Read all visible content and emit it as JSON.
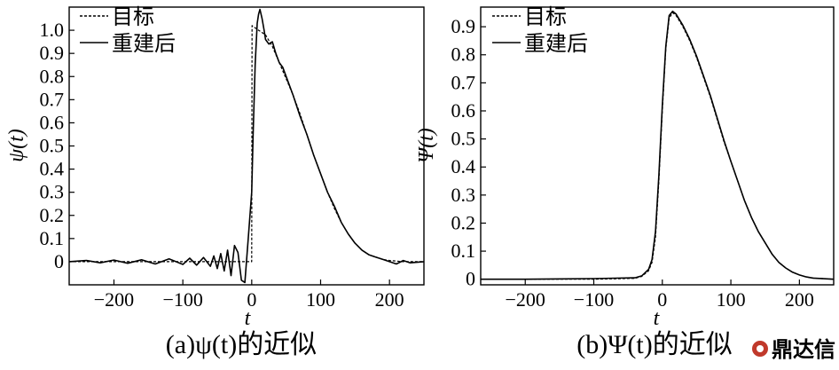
{
  "chart_data": [
    {
      "type": "line",
      "caption": "(a)ψ(t)的近似",
      "ylabel": "ψ(t)",
      "xlabel": "t",
      "xlim": [
        -265,
        250
      ],
      "ylim": [
        -0.1,
        1.1
      ],
      "xticks": [
        -200,
        -100,
        0,
        100,
        200
      ],
      "yticks": [
        0,
        0.1,
        0.2,
        0.3,
        0.4,
        0.5,
        0.6,
        0.7,
        0.8,
        0.9,
        1.0
      ],
      "ytick_labels": [
        "0",
        "0.1",
        "0.2",
        "0.3",
        "0.4",
        "0.5",
        "0.6",
        "0.7",
        "0.8",
        "0.9",
        "1.0"
      ],
      "legend": {
        "position": "top-left",
        "entries": [
          "目标",
          "重建后"
        ]
      },
      "series": [
        {
          "name": "目标",
          "style": "dashed",
          "x": [
            -265,
            -150,
            -50,
            -1,
            0,
            0.5,
            10,
            20,
            30,
            40,
            50,
            60,
            70,
            80,
            90,
            100,
            110,
            120,
            130,
            140,
            150,
            160,
            170,
            180,
            190,
            200,
            220,
            250
          ],
          "y": [
            0,
            0,
            0,
            0,
            0,
            1.02,
            1.0,
            0.98,
            0.93,
            0.86,
            0.79,
            0.72,
            0.64,
            0.55,
            0.46,
            0.38,
            0.3,
            0.23,
            0.17,
            0.12,
            0.08,
            0.05,
            0.03,
            0.02,
            0.01,
            0.005,
            0,
            0
          ]
        },
        {
          "name": "重建后",
          "style": "solid",
          "x": [
            -265,
            -240,
            -220,
            -200,
            -180,
            -160,
            -140,
            -120,
            -100,
            -90,
            -80,
            -70,
            -60,
            -55,
            -50,
            -45,
            -40,
            -35,
            -30,
            -25,
            -20,
            -15,
            -10,
            -5,
            0,
            2,
            5,
            8,
            10,
            12,
            15,
            18,
            20,
            25,
            30,
            35,
            40,
            45,
            50,
            60,
            70,
            80,
            90,
            100,
            110,
            120,
            130,
            140,
            150,
            160,
            170,
            180,
            190,
            200,
            210,
            220,
            230,
            250
          ],
          "y": [
            0,
            0.005,
            -0.005,
            0.007,
            -0.007,
            0.008,
            -0.01,
            0.012,
            -0.012,
            0.015,
            -0.015,
            0.018,
            -0.02,
            0.025,
            -0.03,
            0.035,
            -0.04,
            0.05,
            -0.06,
            0.07,
            0.04,
            -0.08,
            -0.09,
            0.1,
            0.3,
            0.55,
            0.85,
            1.03,
            1.07,
            1.09,
            1.05,
            1.0,
            0.96,
            0.94,
            0.95,
            0.9,
            0.86,
            0.84,
            0.8,
            0.72,
            0.63,
            0.55,
            0.46,
            0.38,
            0.3,
            0.24,
            0.17,
            0.12,
            0.08,
            0.05,
            0.03,
            0.02,
            0.01,
            0.0,
            -0.01,
            0.005,
            -0.005,
            0
          ]
        }
      ]
    },
    {
      "type": "line",
      "caption": "(b)Ψ(t)的近似",
      "ylabel": "Ψ(t)",
      "xlabel": "t",
      "xlim": [
        -265,
        250
      ],
      "ylim": [
        -0.02,
        0.97
      ],
      "xticks": [
        -200,
        -100,
        0,
        100,
        200
      ],
      "yticks": [
        0,
        0.1,
        0.2,
        0.3,
        0.4,
        0.5,
        0.6,
        0.7,
        0.8,
        0.9
      ],
      "ytick_labels": [
        "0",
        "0.1",
        "0.2",
        "0.3",
        "0.4",
        "0.5",
        "0.6",
        "0.7",
        "0.8",
        "0.9"
      ],
      "legend": {
        "position": "top-left",
        "entries": [
          "目标",
          "重建后"
        ]
      },
      "series": [
        {
          "name": "目标",
          "style": "dashed",
          "x": [
            -265,
            -200,
            -100,
            -40,
            -30,
            -20,
            -15,
            -10,
            -5,
            0,
            5,
            10,
            15,
            20,
            30,
            40,
            50,
            60,
            70,
            80,
            90,
            100,
            110,
            120,
            130,
            140,
            150,
            160,
            170,
            180,
            190,
            200,
            210,
            220,
            250
          ],
          "y": [
            0,
            0,
            0,
            0.003,
            0.01,
            0.03,
            0.06,
            0.15,
            0.35,
            0.6,
            0.82,
            0.93,
            0.95,
            0.94,
            0.9,
            0.85,
            0.79,
            0.72,
            0.65,
            0.57,
            0.49,
            0.42,
            0.35,
            0.28,
            0.22,
            0.17,
            0.13,
            0.09,
            0.06,
            0.04,
            0.025,
            0.015,
            0.008,
            0.004,
            0
          ]
        },
        {
          "name": "重建后",
          "style": "solid",
          "x": [
            -265,
            -200,
            -100,
            -40,
            -30,
            -20,
            -15,
            -10,
            -5,
            0,
            5,
            10,
            15,
            20,
            30,
            40,
            50,
            60,
            70,
            80,
            90,
            100,
            110,
            120,
            130,
            140,
            150,
            160,
            170,
            180,
            190,
            200,
            210,
            220,
            250
          ],
          "y": [
            0,
            0,
            0.002,
            0.005,
            0.012,
            0.035,
            0.07,
            0.17,
            0.37,
            0.62,
            0.83,
            0.94,
            0.955,
            0.945,
            0.905,
            0.855,
            0.795,
            0.725,
            0.655,
            0.575,
            0.495,
            0.42,
            0.35,
            0.28,
            0.22,
            0.17,
            0.13,
            0.09,
            0.06,
            0.04,
            0.025,
            0.015,
            0.008,
            0.004,
            0
          ]
        }
      ]
    }
  ],
  "watermark": {
    "text": "鼎达信",
    "color": "#c0392b"
  },
  "colors": {
    "line": "#000000",
    "background": "#ffffff"
  }
}
